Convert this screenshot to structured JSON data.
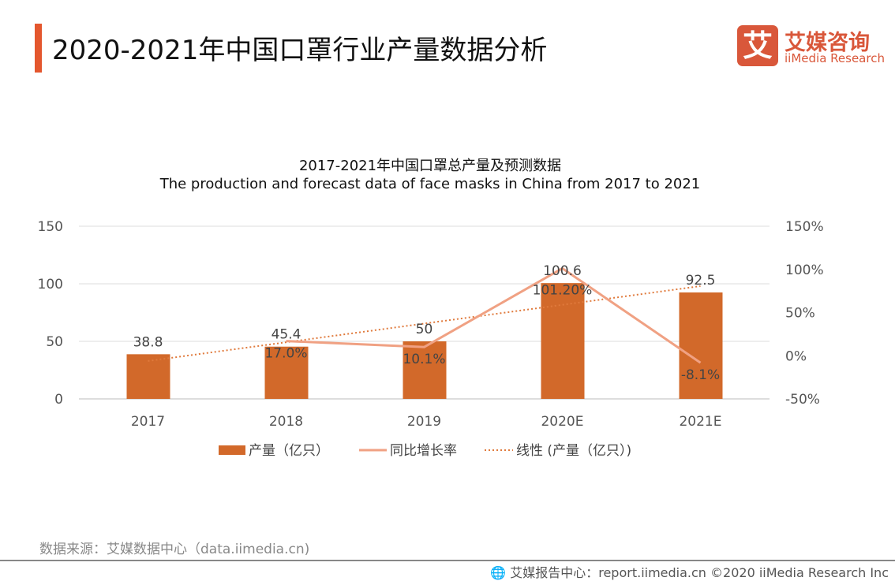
{
  "header": {
    "title": "2020-2021年中国口罩行业产量数据分析"
  },
  "logo": {
    "mark": "艾",
    "cn": "艾媒咨询",
    "en": "iiMedia Research"
  },
  "chart_data": {
    "type": "bar",
    "title": "2017-2021年中国口罩总产量及预测数据",
    "subtitle": "The production and forecast data of face masks in China from 2017 to 2021",
    "categories": [
      "2017",
      "2018",
      "2019",
      "2020E",
      "2021E"
    ],
    "series": [
      {
        "name": "产量（亿只）",
        "type": "bar",
        "axis": "left",
        "values": [
          38.8,
          45.4,
          50,
          100.6,
          92.5
        ],
        "labels": [
          "38.8",
          "45.4",
          "50",
          "100.6",
          "92.5"
        ],
        "color": "#d2692a"
      },
      {
        "name": "同比增长率",
        "type": "line",
        "axis": "right",
        "values": [
          null,
          17.0,
          10.1,
          101.2,
          -8.1
        ],
        "labels": [
          "",
          "17.0%",
          "10.1%",
          "101.20%",
          "-8.1%"
        ],
        "color": "#f0a183"
      },
      {
        "name": "线性 (产量（亿只）)",
        "type": "trendline",
        "of": "产量（亿只）",
        "color": "#e07a3c"
      }
    ],
    "left_axis": {
      "ylim": [
        0,
        150
      ],
      "ticks": [
        "0",
        "50",
        "100",
        "150"
      ]
    },
    "right_axis": {
      "ylim": [
        -50,
        150
      ],
      "ticks": [
        "-50%",
        "0%",
        "50%",
        "100%",
        "150%"
      ]
    },
    "grid": true,
    "legend": "bottom"
  },
  "source": "数据来源：艾媒数据中心（data.iimedia.cn)",
  "footer": "艾媒报告中心：report.iimedia.cn  ©2020  iiMedia Research  Inc"
}
